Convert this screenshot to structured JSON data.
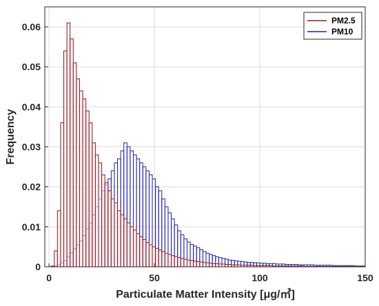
{
  "chart_data": {
    "type": "bar",
    "title": "",
    "xlabel": "Particulate Matter Intensity [μg/㎥]",
    "ylabel": "Frequency",
    "xlim": [
      -2,
      150
    ],
    "ylim": [
      0,
      0.065
    ],
    "xticks": [
      0,
      50,
      100,
      150
    ],
    "yticks": [
      0,
      0.01,
      0.02,
      0.03,
      0.04,
      0.05,
      0.06
    ],
    "xtick_labels": [
      "0",
      "50",
      "100",
      "150"
    ],
    "ytick_labels": [
      "0",
      "0.01",
      "0.02",
      "0.03",
      "0.04",
      "0.05",
      "0.06"
    ],
    "grid": true,
    "legend_position": "top-right",
    "bin_start": 1,
    "bin_width": 1.5,
    "series": [
      {
        "name": "PM2.5",
        "color": "#8b1a1a",
        "values": [
          0.0002,
          0.004,
          0.014,
          0.036,
          0.054,
          0.061,
          0.057,
          0.051,
          0.047,
          0.044,
          0.042,
          0.039,
          0.036,
          0.031,
          0.028,
          0.026,
          0.023,
          0.021,
          0.019,
          0.017,
          0.016,
          0.014,
          0.013,
          0.012,
          0.011,
          0.01,
          0.0092,
          0.0083,
          0.0075,
          0.0068,
          0.0061,
          0.0055,
          0.005,
          0.0046,
          0.0042,
          0.0038,
          0.0034,
          0.0031,
          0.0028,
          0.0026,
          0.0023,
          0.0021,
          0.0019,
          0.0017,
          0.0016,
          0.0014,
          0.0013,
          0.0012,
          0.0011,
          0.001,
          0.0009,
          0.0008,
          0.0008,
          0.0007,
          0.0007,
          0.0006,
          0.0006,
          0.0005,
          0.0005,
          0.0005,
          0.0004,
          0.0004,
          0.0004,
          0.0004,
          0.0003,
          0.0003,
          0.0003,
          0.0003,
          0.0003,
          0.0003,
          0.0002,
          0.0002,
          0.0002,
          0.0002,
          0.0002,
          0.0002,
          0.0002,
          0.0002,
          0.0002,
          0.0002,
          0.0001,
          0.0001,
          0.0001,
          0.0001,
          0.0001,
          0.0001,
          0.0001,
          0.0001,
          0.0001,
          0.0001,
          0.0001,
          0.0001,
          0.0001,
          0.0001,
          0.0001,
          0.0001,
          0.0001,
          0.0001,
          0.0001,
          0.0001
        ]
      },
      {
        "name": "PM10",
        "color": "#1c1cb4",
        "values": [
          0,
          0.0002,
          0.0005,
          0.001,
          0.0016,
          0.0025,
          0.0035,
          0.0045,
          0.0055,
          0.0065,
          0.0078,
          0.0095,
          0.011,
          0.013,
          0.015,
          0.017,
          0.019,
          0.0205,
          0.022,
          0.024,
          0.026,
          0.027,
          0.029,
          0.031,
          0.03,
          0.029,
          0.028,
          0.027,
          0.026,
          0.025,
          0.024,
          0.023,
          0.022,
          0.02,
          0.019,
          0.017,
          0.015,
          0.0135,
          0.012,
          0.0105,
          0.009,
          0.008,
          0.007,
          0.0062,
          0.0056,
          0.0052,
          0.0048,
          0.0043,
          0.0038,
          0.0034,
          0.0031,
          0.0028,
          0.0025,
          0.0023,
          0.0021,
          0.0019,
          0.0017,
          0.0016,
          0.0015,
          0.0014,
          0.0013,
          0.0012,
          0.0011,
          0.0011,
          0.001,
          0.001,
          0.0009,
          0.0009,
          0.0008,
          0.0008,
          0.0008,
          0.0007,
          0.0007,
          0.0007,
          0.0006,
          0.0006,
          0.0006,
          0.0006,
          0.0005,
          0.0005,
          0.0005,
          0.0005,
          0.0005,
          0.0004,
          0.0004,
          0.0004,
          0.0004,
          0.0004,
          0.0004,
          0.0003,
          0.0003,
          0.0003,
          0.0003,
          0.0003,
          0.0003,
          0.0003,
          0.0002,
          0.0002,
          0.0002,
          0.0002
        ]
      }
    ]
  }
}
